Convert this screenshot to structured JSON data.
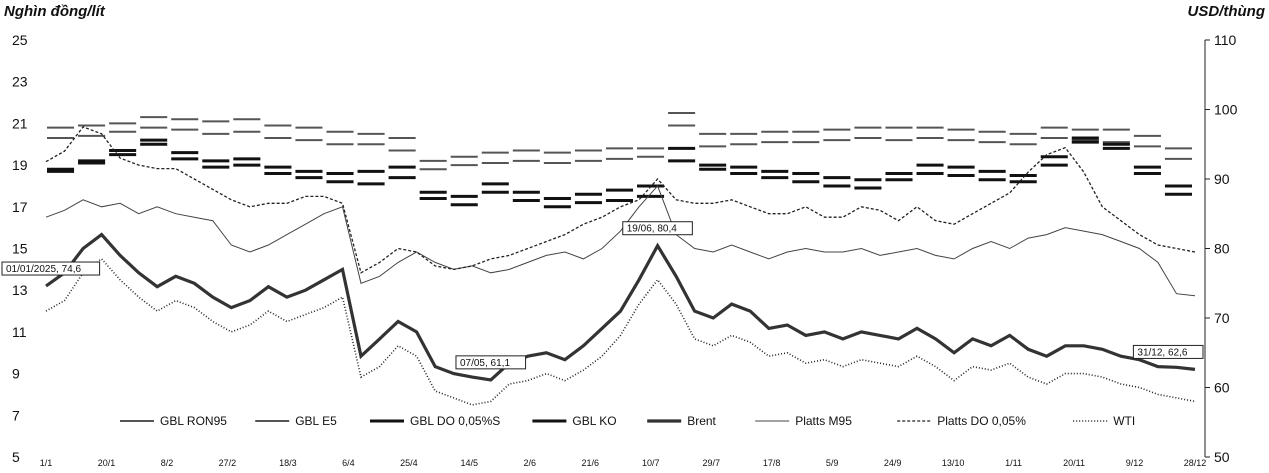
{
  "chart_data": {
    "type": "line",
    "left_axis_title": "Nghìn đồng/lít",
    "right_axis_title": "USD/thùng",
    "left_ylim": [
      5,
      25
    ],
    "left_ticks": [
      "25",
      "23",
      "21",
      "19",
      "17",
      "15",
      "13",
      "11",
      "9",
      "7",
      "5"
    ],
    "right_ylim": [
      50,
      110
    ],
    "right_ticks": [
      "110",
      "100",
      "90",
      "80",
      "70",
      "60",
      "50"
    ],
    "x_ticks": [
      "1/1",
      "20/1",
      "8/2",
      "27/2",
      "18/3",
      "6/4",
      "25/4",
      "14/5",
      "2/6",
      "21/6",
      "10/7",
      "29/7",
      "17/8",
      "5/9",
      "24/9",
      "13/10",
      "1/11",
      "20/11",
      "9/12",
      "28/12"
    ],
    "grid": false,
    "legend_position": "bottom",
    "series": [
      {
        "name": "GBL RON95",
        "axis": "left",
        "style": "step-dash",
        "values": [
          20.8,
          20.9,
          21.0,
          21.3,
          21.2,
          21.1,
          21.2,
          20.9,
          20.8,
          20.6,
          20.5,
          20.3,
          19.2,
          19.4,
          19.6,
          19.7,
          19.6,
          19.7,
          19.8,
          19.8,
          21.5,
          20.5,
          20.5,
          20.6,
          20.6,
          20.7,
          20.8,
          20.8,
          20.8,
          20.7,
          20.6,
          20.5,
          20.8,
          20.7,
          20.7,
          20.4,
          19.8
        ]
      },
      {
        "name": "GBL E5",
        "axis": "left",
        "style": "step-dash",
        "values": [
          20.3,
          20.4,
          20.6,
          20.8,
          20.7,
          20.5,
          20.6,
          20.3,
          20.2,
          20.0,
          20.0,
          19.7,
          18.8,
          19.0,
          19.1,
          19.2,
          19.1,
          19.2,
          19.3,
          19.4,
          20.9,
          19.9,
          20.0,
          20.1,
          20.1,
          20.2,
          20.3,
          20.2,
          20.3,
          20.2,
          20.1,
          20.0,
          20.3,
          20.2,
          20.1,
          19.9,
          19.3
        ]
      },
      {
        "name": "GBL DO 0,05%S",
        "axis": "left",
        "style": "step-dash-bold",
        "values": [
          18.7,
          19.1,
          19.5,
          20.0,
          19.3,
          18.9,
          19.0,
          18.6,
          18.4,
          18.2,
          18.1,
          18.4,
          17.4,
          17.1,
          17.7,
          17.3,
          17.0,
          17.2,
          17.3,
          17.5,
          19.2,
          18.8,
          18.6,
          18.4,
          18.2,
          18.0,
          17.9,
          18.3,
          18.6,
          18.5,
          18.3,
          18.2,
          19.0,
          20.1,
          19.8,
          18.6,
          17.6
        ]
      },
      {
        "name": "GBL KO",
        "axis": "left",
        "style": "step-dash-bold",
        "values": [
          18.8,
          19.2,
          19.7,
          20.2,
          19.6,
          19.2,
          19.3,
          18.9,
          18.7,
          18.6,
          18.7,
          18.9,
          17.7,
          17.5,
          18.1,
          17.7,
          17.4,
          17.6,
          17.8,
          18.0,
          19.8,
          19.0,
          18.9,
          18.7,
          18.6,
          18.4,
          18.3,
          18.6,
          19.0,
          18.9,
          18.7,
          18.5,
          19.4,
          20.3,
          20.0,
          18.9,
          18.0
        ]
      },
      {
        "name": "Brent",
        "axis": "right",
        "style": "bold",
        "values": [
          74.6,
          76.5,
          80.0,
          82.0,
          79.0,
          76.5,
          74.5,
          76.0,
          75.0,
          73.0,
          71.5,
          72.5,
          74.5,
          73.0,
          74.0,
          75.5,
          77.0,
          64.5,
          67.0,
          69.5,
          68.0,
          63.0,
          62.0,
          61.5,
          61.1,
          63.5,
          64.5,
          65.0,
          64.0,
          66.0,
          68.5,
          71.0,
          75.5,
          80.4,
          76.0,
          71.0,
          70.0,
          72.0,
          71.0,
          68.5,
          69.0,
          67.5,
          68.0,
          67.0,
          68.0,
          67.5,
          67.0,
          68.5,
          67.0,
          65.0,
          67.0,
          66.0,
          67.5,
          65.5,
          64.5,
          66.0,
          66.0,
          65.5,
          64.5,
          64.0,
          63.0,
          62.9,
          62.6
        ]
      },
      {
        "name": "Platts M95",
        "axis": "right",
        "style": "thin",
        "values": [
          84.5,
          85.5,
          87.0,
          86.0,
          86.5,
          85.0,
          86.0,
          85.0,
          84.5,
          84.0,
          80.5,
          79.5,
          80.5,
          82.0,
          83.5,
          85.0,
          86.0,
          75.0,
          76.0,
          78.0,
          79.5,
          78.0,
          77.0,
          77.5,
          76.5,
          77.0,
          78.0,
          79.0,
          79.5,
          78.5,
          80.0,
          82.5,
          86.0,
          89.0,
          82.0,
          80.0,
          79.5,
          80.5,
          79.5,
          78.5,
          79.5,
          80.0,
          79.5,
          79.5,
          80.0,
          79.0,
          79.5,
          80.0,
          79.0,
          78.5,
          80.0,
          81.0,
          80.0,
          81.5,
          82.0,
          83.0,
          82.5,
          82.0,
          81.0,
          80.0,
          78.0,
          73.5,
          73.2
        ]
      },
      {
        "name": "Platts DO 0,05%",
        "axis": "right",
        "style": "dashed",
        "values": [
          92.5,
          94.0,
          97.5,
          96.5,
          93.0,
          92.0,
          91.5,
          91.5,
          90.0,
          88.5,
          87.0,
          86.0,
          86.5,
          86.5,
          87.5,
          87.5,
          86.5,
          76.5,
          78.0,
          80.0,
          79.5,
          77.5,
          77.0,
          77.5,
          78.5,
          79.0,
          80.0,
          81.0,
          82.0,
          83.5,
          84.5,
          86.0,
          87.0,
          90.0,
          87.0,
          86.5,
          86.5,
          87.0,
          86.0,
          85.0,
          85.0,
          86.0,
          84.5,
          84.5,
          86.0,
          85.5,
          84.0,
          86.0,
          84.0,
          83.5,
          85.0,
          86.5,
          88.0,
          91.0,
          93.5,
          94.5,
          91.0,
          86.0,
          84.0,
          82.0,
          80.5,
          80.0,
          79.5
        ]
      },
      {
        "name": "WTI",
        "axis": "right",
        "style": "dotted",
        "values": [
          71.0,
          72.5,
          76.5,
          78.5,
          75.5,
          73.0,
          71.0,
          72.5,
          71.5,
          69.5,
          68.0,
          69.0,
          71.0,
          69.5,
          70.5,
          71.5,
          73.0,
          61.5,
          63.0,
          66.0,
          64.5,
          59.5,
          58.5,
          57.5,
          58.0,
          60.5,
          61.0,
          62.0,
          61.0,
          62.5,
          64.5,
          67.5,
          72.0,
          75.5,
          72.0,
          67.0,
          66.0,
          67.5,
          66.5,
          64.5,
          65.0,
          63.5,
          64.0,
          63.0,
          64.0,
          63.5,
          63.0,
          64.5,
          63.0,
          61.0,
          63.0,
          62.5,
          63.5,
          61.5,
          60.5,
          62.0,
          62.0,
          61.5,
          60.5,
          60.0,
          59.0,
          58.5,
          58.0
        ]
      }
    ],
    "annotations": [
      {
        "text": "01/01/2025, 74,6",
        "x": 0,
        "y": 74.6
      },
      {
        "text": "19/06, 80,4",
        "x": 33,
        "y": 80.4
      },
      {
        "text": "07/05, 61,1",
        "x": 24,
        "y": 61.1
      },
      {
        "text": "31/12, 62,6",
        "x": 62,
        "y": 62.6
      }
    ]
  }
}
